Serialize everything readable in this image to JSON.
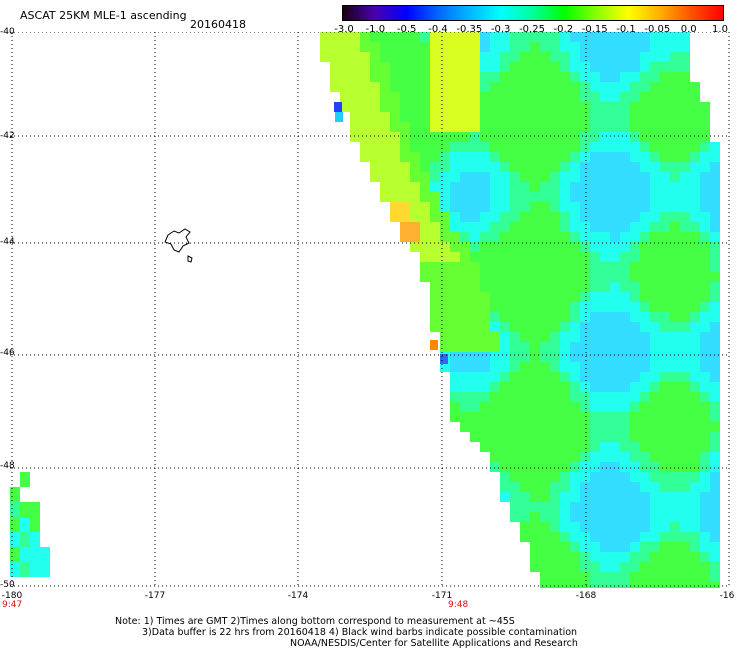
{
  "header": {
    "title": "ASCAT 25KM MLE-1 ascending",
    "date": "20160418"
  },
  "colorbar": {
    "labels": [
      "-3.0",
      "-1.0",
      "-0.5",
      "-0.4",
      "-0.35",
      "-0.3",
      "-0.25",
      "-0.2",
      "-0.15",
      "-0.1",
      "-0.05",
      "0.0",
      "1.0"
    ],
    "colors": [
      "#1a0010",
      "#4a00b0",
      "#0000ff",
      "#0066ff",
      "#00b8ff",
      "#00ffff",
      "#00ff99",
      "#00ff00",
      "#88ff00",
      "#ffff00",
      "#ffb000",
      "#ff5000",
      "#ff0000"
    ]
  },
  "axes": {
    "lat_labels": [
      "-40",
      "-42",
      "-44",
      "-46",
      "-48",
      "-50"
    ],
    "lon_labels": [
      "-180",
      "-177",
      "-174",
      "-171",
      "-168",
      "-16"
    ],
    "time_labels": [
      "9:47",
      "9:48"
    ]
  },
  "notes": {
    "line1": "Note: 1) Times are GMT 2)Times along bottom correspond to measurement at ~45S",
    "line2": "3)Data buffer is 22 hrs from 20160418 4) Black wind barbs indicate possible contamination",
    "line3": "NOAA/NESDIS/Center for Satellite Applications and Research"
  },
  "colors": {
    "time_label": "#dd1111",
    "grid": "#000000"
  }
}
